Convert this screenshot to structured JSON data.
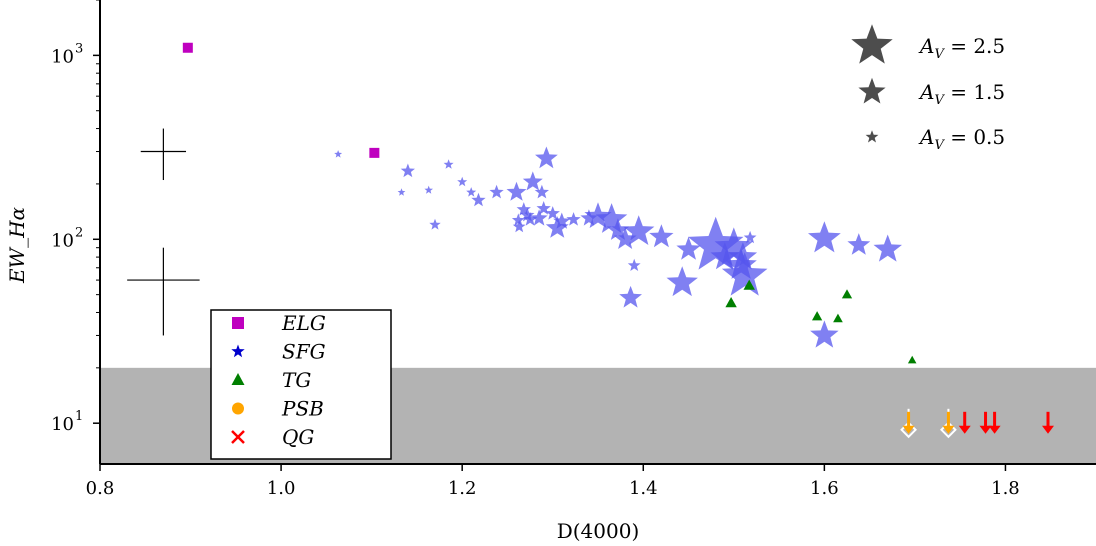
{
  "chart_data": {
    "type": "scatter",
    "xlabel": "D(4000)",
    "ylabel": "EW_Hα",
    "x_ticks": [
      "0.8",
      "1.0",
      "1.2",
      "1.4",
      "1.6",
      "1.8"
    ],
    "y_ticks": [
      {
        "base": "10",
        "exp": "1"
      },
      {
        "base": "10",
        "exp": "2"
      },
      {
        "base": "10",
        "exp": "3"
      }
    ],
    "xlim": [
      0.8,
      1.9
    ],
    "ylim": [
      6,
      2000
    ],
    "y_scale": "log",
    "shaded_band": {
      "y_from": 6,
      "y_to": 20,
      "color": "#b3b3b3"
    },
    "error_bars": [
      {
        "x": 0.87,
        "y": 300,
        "xerr": 0.025,
        "y_low": 210,
        "y_high": 400
      },
      {
        "x": 0.87,
        "y": 60,
        "xerr": 0.04,
        "y_low": 30,
        "y_high": 90
      }
    ],
    "size_legend": [
      {
        "label": "A_V = 2.5",
        "av": 2.5
      },
      {
        "label": "A_V = 1.5",
        "av": 1.5
      },
      {
        "label": "A_V = 0.5",
        "av": 0.5
      }
    ],
    "legend": [
      {
        "label": "ELG",
        "marker": "square",
        "color": "#bf00bf"
      },
      {
        "label": "SFG",
        "marker": "star",
        "color": "#0000cc"
      },
      {
        "label": "TG",
        "marker": "triangle",
        "color": "#007f00"
      },
      {
        "label": "PSB",
        "marker": "circle",
        "color": "#ffa500"
      },
      {
        "label": "QG",
        "marker": "x",
        "color": "#ff0000"
      }
    ],
    "series": [
      {
        "name": "ELG",
        "marker": "square",
        "color": "#bf00bf",
        "points": [
          [
            0.897,
            1100
          ],
          [
            1.103,
            295
          ]
        ]
      },
      {
        "name": "SFG",
        "marker": "star",
        "color": "#5555ee",
        "points": [
          [
            1.063,
            290,
            0.15
          ],
          [
            1.293,
            275,
            1.2
          ],
          [
            1.185,
            255,
            0.3
          ],
          [
            1.14,
            235,
            0.6
          ],
          [
            1.2,
            205,
            0.3
          ],
          [
            1.278,
            205,
            1.0
          ],
          [
            1.163,
            185,
            0.2
          ],
          [
            1.133,
            180,
            0.15
          ],
          [
            1.21,
            180,
            0.3
          ],
          [
            1.238,
            180,
            0.6
          ],
          [
            1.26,
            180,
            1.0
          ],
          [
            1.288,
            180,
            0.6
          ],
          [
            1.218,
            163,
            0.6
          ],
          [
            1.29,
            147,
            0.6
          ],
          [
            1.268,
            145,
            0.6
          ],
          [
            1.3,
            138,
            0.6
          ],
          [
            1.272,
            135,
            0.6
          ],
          [
            1.285,
            130,
            0.8
          ],
          [
            1.275,
            128,
            0.6
          ],
          [
            1.262,
            127,
            0.5
          ],
          [
            1.31,
            125,
            0.8
          ],
          [
            1.323,
            128,
            0.6
          ],
          [
            1.263,
            117,
            0.5
          ],
          [
            1.17,
            120,
            0.4
          ],
          [
            1.305,
            115,
            1.2
          ],
          [
            1.34,
            130,
            0.8
          ],
          [
            1.35,
            133,
            1.5
          ],
          [
            1.365,
            128,
            1.8
          ],
          [
            1.372,
            112,
            1.2
          ],
          [
            1.38,
            100,
            1.2
          ],
          [
            1.395,
            110,
            1.8
          ],
          [
            1.42,
            103,
            1.3
          ],
          [
            1.39,
            72,
            0.5
          ],
          [
            1.45,
            88,
            1.3
          ],
          [
            1.443,
            58,
            1.8
          ],
          [
            1.386,
            48,
            1.2
          ],
          [
            1.48,
            92,
            3.5
          ],
          [
            1.49,
            80,
            1.6
          ],
          [
            1.5,
            90,
            2.3
          ],
          [
            1.508,
            72,
            1.8
          ],
          [
            1.512,
            63,
            2.8
          ],
          [
            1.51,
            80,
            1.6
          ],
          [
            1.518,
            102,
            0.5
          ],
          [
            1.6,
            101,
            1.9
          ],
          [
            1.6,
            30,
            1.6
          ],
          [
            1.638,
            93,
            1.2
          ],
          [
            1.67,
            88,
            1.6
          ]
        ]
      },
      {
        "name": "TG",
        "marker": "triangle",
        "color": "#007f00",
        "points": [
          [
            1.497,
            45,
            1.0
          ],
          [
            1.517,
            56,
            1.0
          ],
          [
            1.592,
            38,
            0.8
          ],
          [
            1.615,
            37,
            0.7
          ],
          [
            1.625,
            50,
            0.8
          ],
          [
            1.697,
            22,
            0.5
          ]
        ]
      },
      {
        "name": "PSB",
        "marker": "arrow",
        "color": "#ffa500",
        "points": [
          [
            1.693,
            9.8
          ],
          [
            1.737,
            9.8
          ]
        ]
      },
      {
        "name": "QG",
        "marker": "arrow",
        "color": "#ff0000",
        "points": [
          [
            1.755,
            9.8
          ],
          [
            1.778,
            9.8
          ],
          [
            1.788,
            9.8
          ],
          [
            1.847,
            9.8
          ]
        ]
      }
    ],
    "grid": false
  }
}
